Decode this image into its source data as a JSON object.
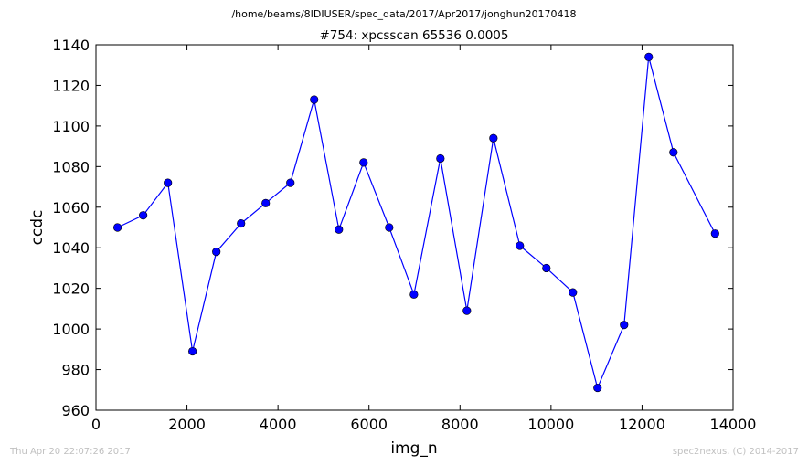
{
  "chart_data": {
    "type": "line",
    "suptitle": "/home/beams/8IDIUSER/spec_data/2017/Apr2017/jonghun20170418",
    "title": "#754: xpcsscan 65536 0.0005",
    "xlabel": "img_n",
    "ylabel": "ccdc",
    "xlim": [
      0,
      14000
    ],
    "ylim": [
      960,
      1140
    ],
    "xticks": [
      0,
      2000,
      4000,
      6000,
      8000,
      10000,
      12000,
      14000
    ],
    "yticks": [
      960,
      980,
      1000,
      1020,
      1040,
      1060,
      1080,
      1100,
      1120,
      1140
    ],
    "grid": false,
    "line_color": "#0000ff",
    "marker": "circle",
    "series": [
      {
        "x": [
          474,
          1037,
          1580,
          2122,
          2645,
          3188,
          3730,
          4273,
          4795,
          5338,
          5881,
          6444,
          6987,
          7569,
          8151,
          8734,
          9315,
          9898,
          10480,
          11022,
          11605,
          12147,
          12690,
          13605
        ],
        "y": [
          1050,
          1056,
          1072,
          989,
          1038,
          1052,
          1062,
          1072,
          1113,
          1049,
          1082,
          1050,
          1017,
          1084,
          1009,
          1094,
          1041,
          1030,
          1018,
          971,
          1002,
          1134,
          1087,
          1047
        ]
      }
    ]
  },
  "footer": {
    "left": "Thu Apr 20 22:07:26 2017",
    "right": "spec2nexus, (C) 2014-2017"
  }
}
